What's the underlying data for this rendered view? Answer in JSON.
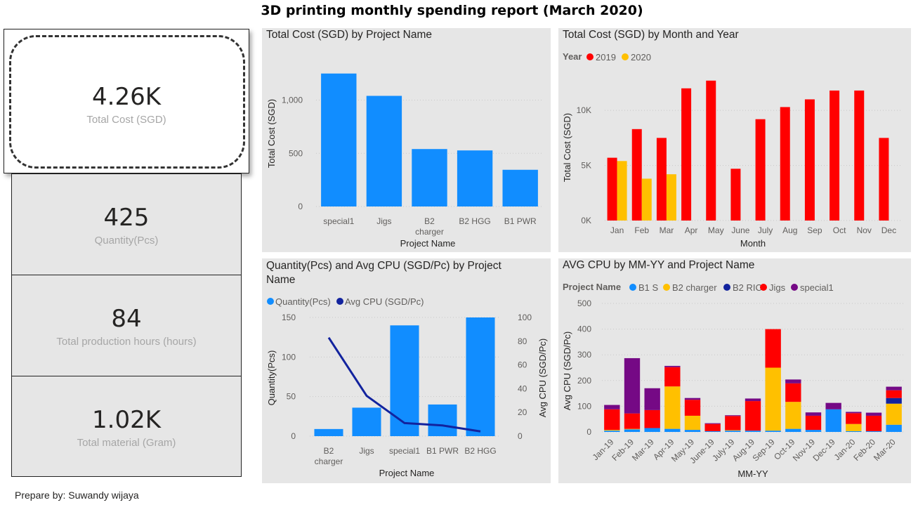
{
  "report_title": "3D printing monthly spending report (March 2020)",
  "kpis": [
    {
      "value": "4.26K",
      "label": "Total Cost (SGD)"
    },
    {
      "value": "425",
      "label": "Quantity(Pcs)"
    },
    {
      "value": "84",
      "label": "Total production hours (hours)"
    },
    {
      "value": "1.02K",
      "label": "Total material (Gram)"
    }
  ],
  "footer": "Prepare by: Suwandy wijaya",
  "colors": {
    "blue": "#118DFF",
    "red": "#FF0000",
    "yellow": "#FFC000",
    "navy": "#12239E",
    "purple": "#750985",
    "panel": "#E6E6E6"
  },
  "chart_data": [
    {
      "type": "bar",
      "title": "Total Cost (SGD) by Project Name",
      "xlabel": "Project Name",
      "ylabel": "Total Cost (SGD)",
      "categories": [
        "special1",
        "Jigs",
        "B2 charger",
        "B2 HGG",
        "B1 PWR"
      ],
      "values": [
        1250,
        1040,
        540,
        527,
        345
      ],
      "yticks": [
        "0",
        "500",
        "1,000"
      ],
      "ylim": [
        0,
        1380
      ]
    },
    {
      "type": "bar",
      "title": "Total Cost (SGD) by Month and Year",
      "xlabel": "Month",
      "ylabel": "Total Cost (SGD)",
      "legend_title": "Year",
      "categories": [
        "Jan",
        "Feb",
        "Mar",
        "Apr",
        "May",
        "June",
        "July",
        "Aug",
        "Sep",
        "Oct",
        "Nov",
        "Dec"
      ],
      "series": [
        {
          "name": "2019",
          "values": [
            5700,
            8300,
            7500,
            12000,
            12700,
            4700,
            9200,
            10300,
            11000,
            11800,
            11800,
            7500
          ]
        },
        {
          "name": "2020",
          "values": [
            5400,
            3800,
            4200,
            null,
            null,
            null,
            null,
            null,
            null,
            null,
            null,
            null
          ]
        }
      ],
      "yticks": [
        "0K",
        "5K",
        "10K"
      ],
      "ylim": [
        0,
        14600
      ]
    },
    {
      "type": "bar",
      "title": "Quantity(Pcs) and Avg CPU (SGD/Pc) by Project Name",
      "xlabel": "Project Name",
      "ylabel": "Quantity(Pcs)",
      "ylabel_right": "Avg CPU (SGD/Pc)",
      "categories": [
        "B2 charger",
        "Jigs",
        "special1",
        "B1 PWR",
        "B2 HGG"
      ],
      "series": [
        {
          "name": "Quantity(Pcs)",
          "kind": "bar",
          "values": [
            9,
            36,
            140,
            40,
            150
          ]
        },
        {
          "name": "Avg CPU (SGD/Pc)",
          "kind": "line",
          "values": [
            83,
            34,
            11,
            9,
            4
          ]
        }
      ],
      "yticks": [
        "0",
        "50",
        "100",
        "150"
      ],
      "yticks_right": [
        "0",
        "20",
        "40",
        "60",
        "80",
        "100"
      ],
      "ylim": [
        0,
        150
      ],
      "ylim_right": [
        0,
        100
      ]
    },
    {
      "type": "bar",
      "title": "AVG CPU by MM-YY and Project Name",
      "xlabel": "MM-YY",
      "ylabel": "Avg CPU (SGD/Pc)",
      "legend_title": "Project Name",
      "stacked": true,
      "categories": [
        "Jan-19",
        "Feb-19",
        "Mar-19",
        "Apr-19",
        "May-19",
        "June-19",
        "July-19",
        "Aug-19",
        "Sep-19",
        "Oct-19",
        "Nov-19",
        "Dec-19",
        "Jan-20",
        "Feb-20",
        "Mar-20"
      ],
      "series": [
        {
          "name": "B1 S",
          "values": [
            5,
            10,
            15,
            12,
            8,
            3,
            5,
            5,
            5,
            12,
            8,
            88,
            3,
            3,
            28
          ]
        },
        {
          "name": "B2 charger",
          "values": [
            3,
            2,
            0,
            165,
            55,
            0,
            2,
            0,
            245,
            105,
            0,
            0,
            28,
            0,
            82
          ]
        },
        {
          "name": "B2 RIC",
          "values": [
            0,
            0,
            0,
            0,
            0,
            0,
            0,
            0,
            0,
            0,
            0,
            0,
            0,
            0,
            22
          ]
        },
        {
          "name": "Jigs",
          "values": [
            80,
            60,
            70,
            75,
            62,
            28,
            55,
            115,
            150,
            72,
            55,
            0,
            42,
            60,
            30
          ]
        },
        {
          "name": "special1",
          "values": [
            17,
            215,
            85,
            5,
            7,
            3,
            3,
            10,
            0,
            15,
            13,
            25,
            5,
            12,
            14
          ]
        }
      ],
      "yticks": [
        "0",
        "100",
        "200",
        "300",
        "400",
        "500"
      ],
      "ylim": [
        0,
        500
      ]
    }
  ]
}
